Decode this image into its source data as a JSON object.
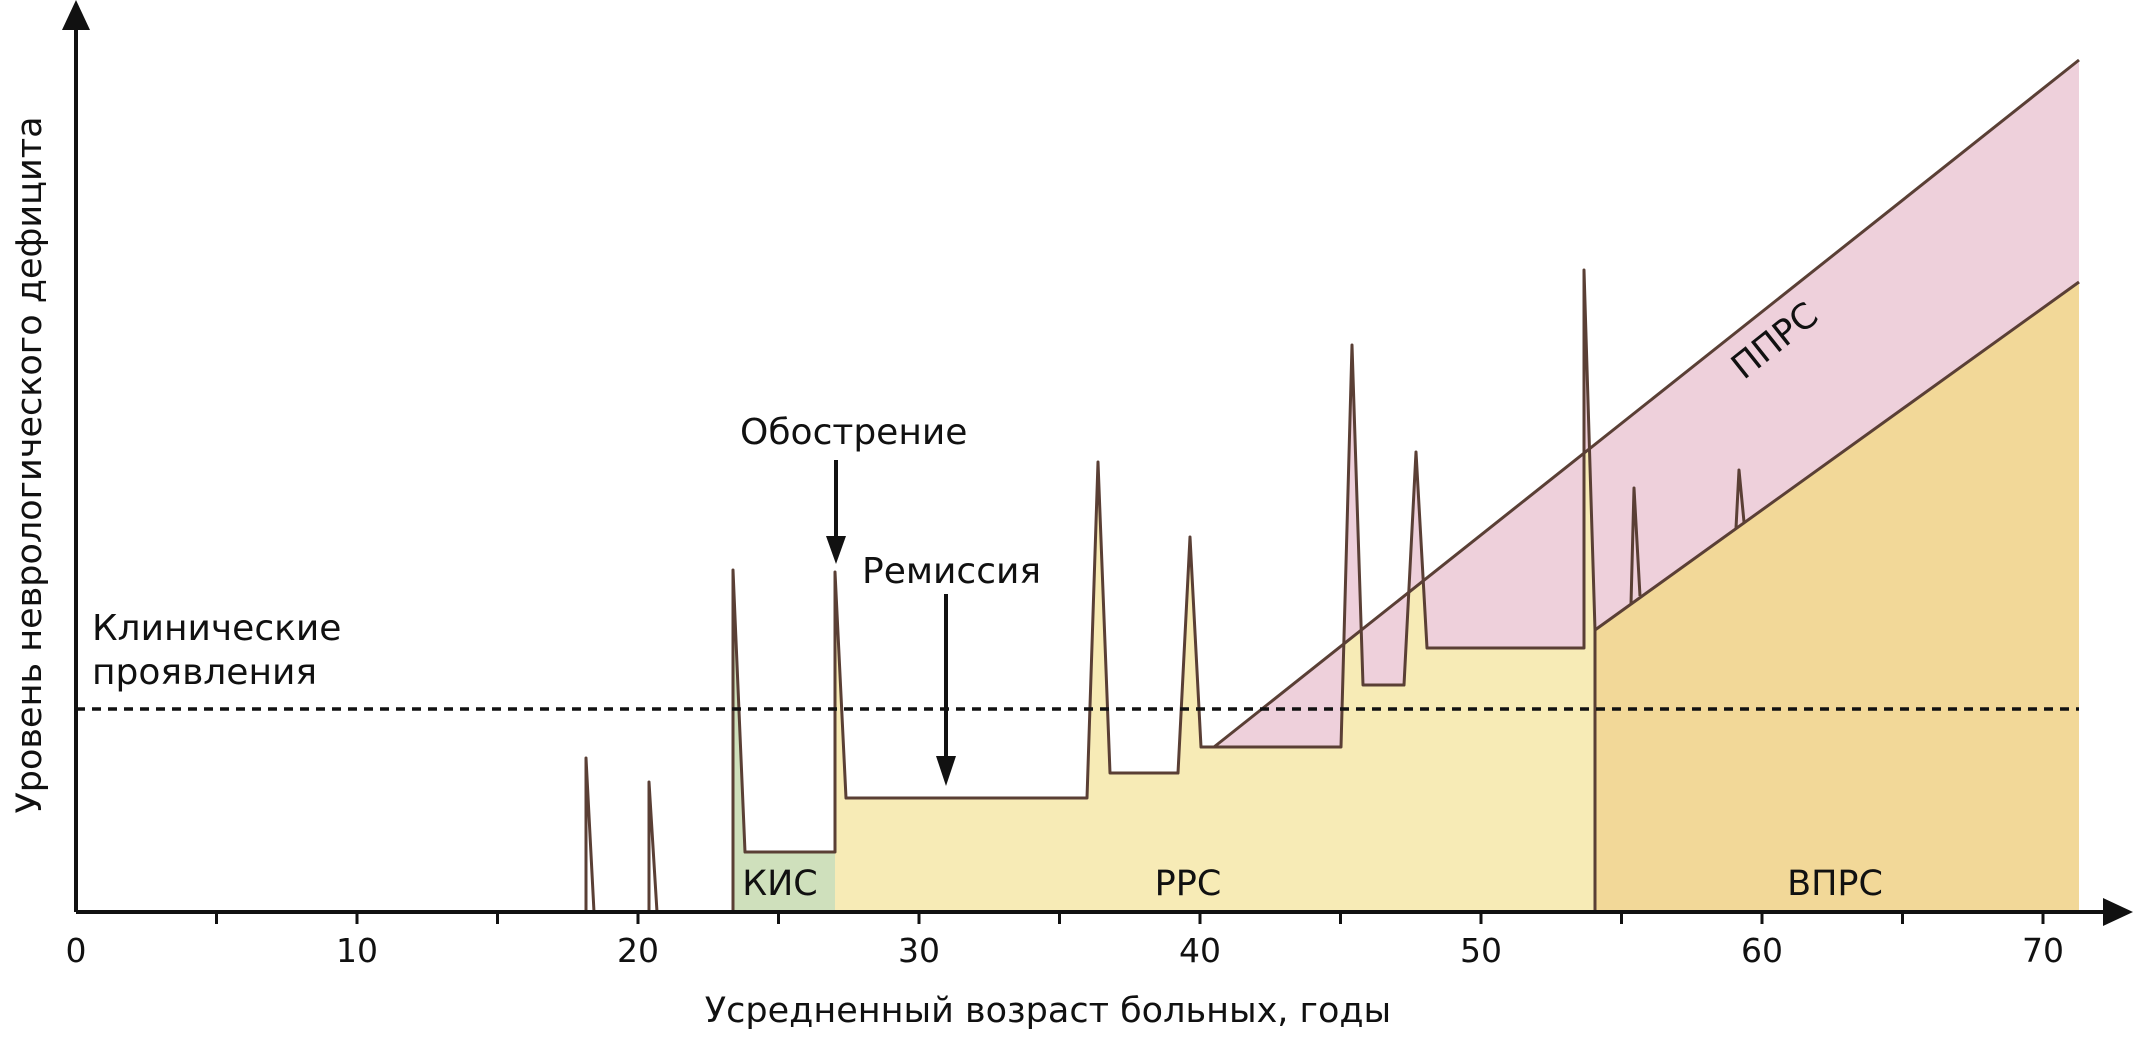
{
  "chart_data": {
    "type": "area",
    "x_axis": {
      "label": "Усредненный возраст больных, годы",
      "range": [
        0,
        71
      ],
      "major_ticks": [
        0,
        10,
        20,
        30,
        40,
        50,
        60,
        70
      ],
      "tick_labels": [
        "0",
        "10",
        "20",
        "30",
        "40",
        "50",
        "60",
        "70"
      ]
    },
    "y_axis": {
      "label": "Уровень неврологического дефицита",
      "ticks_shown": false
    },
    "annotations": {
      "clinical_threshold": "Клинические проявления",
      "exacerbation": "Обострение",
      "remission": "Ремиссия"
    },
    "regions": [
      {
        "id": "kis",
        "label": "КИС",
        "color": "#cfe0bc"
      },
      {
        "id": "rrs",
        "label": "РРС",
        "color": "#f7ebb6"
      },
      {
        "id": "vprs",
        "label": "ВПРС",
        "color": "#f2d898"
      },
      {
        "id": "pprs",
        "label": "ППРС",
        "color": "#eed0db"
      }
    ]
  }
}
